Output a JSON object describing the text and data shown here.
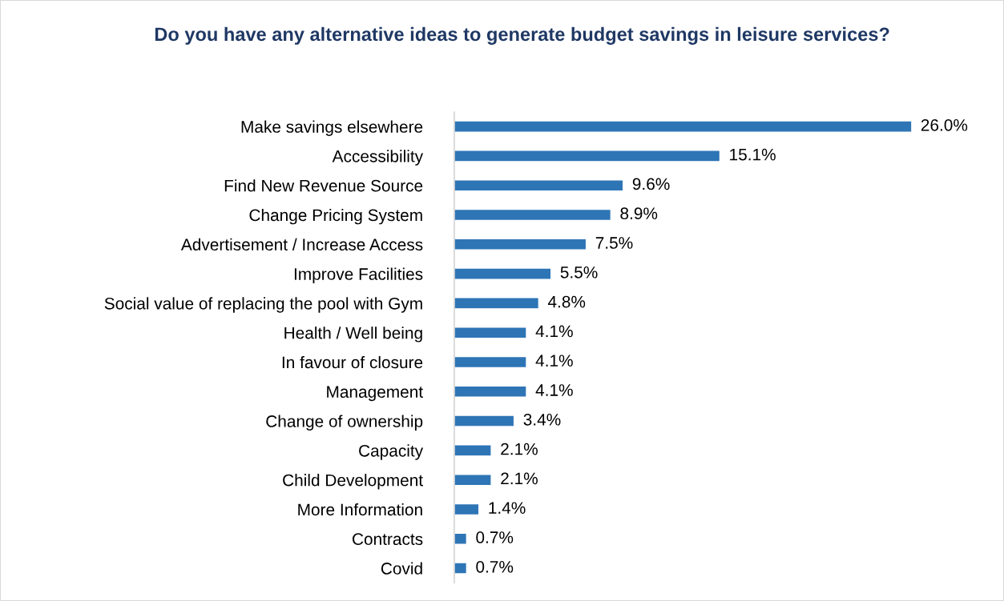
{
  "chart_data": {
    "type": "bar",
    "orientation": "horizontal",
    "title": "Do you have any alternative ideas to generate budget savings in leisure services?",
    "categories": [
      "Make savings elsewhere",
      "Accessibility",
      "Find New Revenue Source",
      "Change Pricing System",
      "Advertisement / Increase Access",
      "Improve Facilities",
      "Social value of replacing the pool with Gym",
      "Health / Well being",
      "In favour of closure",
      "Management",
      "Change of ownership",
      "Capacity",
      "Child Development",
      "More Information",
      "Contracts",
      "Covid"
    ],
    "values": [
      26.0,
      15.1,
      9.6,
      8.9,
      7.5,
      5.5,
      4.8,
      4.1,
      4.1,
      4.1,
      3.4,
      2.1,
      2.1,
      1.4,
      0.7,
      0.7
    ],
    "value_labels": [
      "26.0%",
      "15.1%",
      "9.6%",
      "8.9%",
      "7.5%",
      "5.5%",
      "4.8%",
      "4.1%",
      "4.1%",
      "4.1%",
      "3.4%",
      "2.1%",
      "2.1%",
      "1.4%",
      "0.7%",
      "0.7%"
    ],
    "color": "#2e75b6",
    "tick_labels": "y",
    "grid": false,
    "legend": false
  }
}
